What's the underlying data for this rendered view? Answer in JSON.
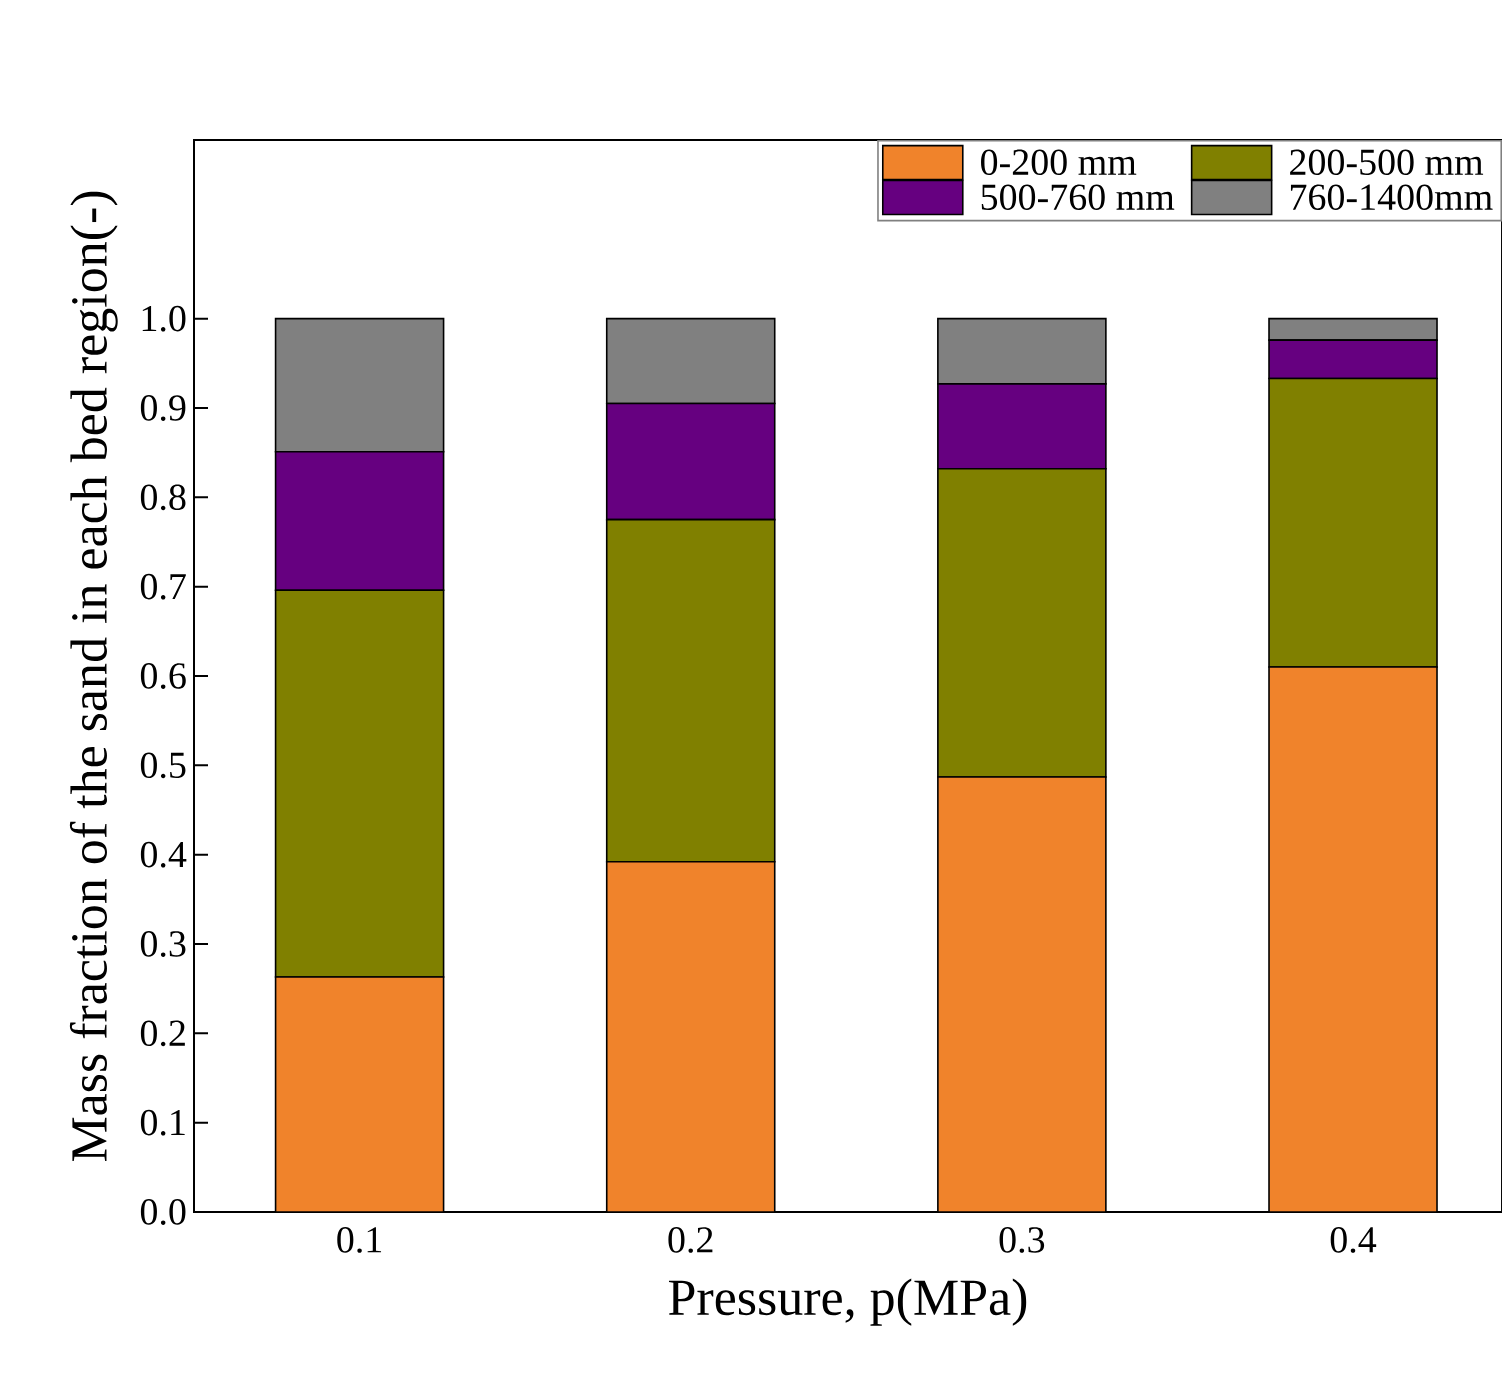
{
  "chart_data": {
    "type": "bar",
    "stacked": true,
    "xlabel": "Pressure, p(MPa)",
    "ylabel": "Mass fraction of the sand in each bed region(-)",
    "categories": [
      "0.1",
      "0.2",
      "0.3",
      "0.4"
    ],
    "series": [
      {
        "name": "0-200 mm",
        "color": "#f0832b",
        "values": [
          0.263,
          0.392,
          0.487,
          0.61
        ]
      },
      {
        "name": "200-500 mm",
        "color": "#808000",
        "values": [
          0.433,
          0.383,
          0.345,
          0.323
        ]
      },
      {
        "name": "500-760 mm",
        "color": "#660080",
        "values": [
          0.155,
          0.13,
          0.095,
          0.043
        ]
      },
      {
        "name": "760-1400mm",
        "color": "#808080",
        "values": [
          0.149,
          0.095,
          0.073,
          0.024
        ]
      }
    ],
    "ylim": [
      0,
      1.2
    ],
    "yticks": [
      {
        "value": 0,
        "label": "0.0"
      },
      0.1,
      0.2,
      0.3,
      0.4,
      0.5,
      0.6,
      0.7,
      0.8,
      0.9,
      {
        "value": 1,
        "label": "1.0"
      }
    ],
    "legend": "top right",
    "grid": false
  }
}
